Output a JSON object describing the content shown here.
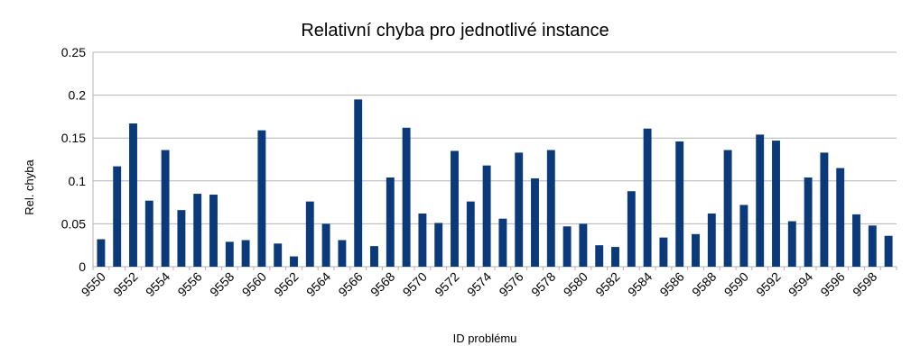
{
  "chart_data": {
    "type": "bar",
    "title": "Relativní chyba pro jednotlivé instance",
    "xlabel": "ID problému",
    "ylabel": "Rel. chyba",
    "ylim": [
      0,
      0.25
    ],
    "yticks": [
      "0",
      "0.05",
      "0.1",
      "0.15",
      "0.2",
      "0.25"
    ],
    "grid": true,
    "bar_color": "#0b3a7a",
    "categories": [
      "9550",
      "9551",
      "9552",
      "9553",
      "9554",
      "9555",
      "9556",
      "9557",
      "9558",
      "9559",
      "9560",
      "9561",
      "9562",
      "9563",
      "9564",
      "9565",
      "9566",
      "9567",
      "9568",
      "9569",
      "9570",
      "9571",
      "9572",
      "9573",
      "9574",
      "9575",
      "9576",
      "9577",
      "9578",
      "9579",
      "9580",
      "9581",
      "9582",
      "9583",
      "9584",
      "9585",
      "9586",
      "9587",
      "9588",
      "9589",
      "9590",
      "9591",
      "9592",
      "9593",
      "9594",
      "9595",
      "9596",
      "9597",
      "9598",
      "9599"
    ],
    "shown_tick_labels": [
      "9550",
      "9552",
      "9554",
      "9556",
      "9558",
      "9560",
      "9562",
      "9564",
      "9566",
      "9568",
      "9570",
      "9572",
      "9574",
      "9576",
      "9578",
      "9580",
      "9582",
      "9584",
      "9586",
      "9588",
      "9590",
      "9592",
      "9594",
      "9596",
      "9598"
    ],
    "values": [
      0.032,
      0.117,
      0.167,
      0.077,
      0.136,
      0.066,
      0.085,
      0.084,
      0.029,
      0.031,
      0.159,
      0.027,
      0.012,
      0.076,
      0.05,
      0.031,
      0.195,
      0.024,
      0.104,
      0.162,
      0.062,
      0.051,
      0.135,
      0.076,
      0.118,
      0.056,
      0.133,
      0.103,
      0.136,
      0.047,
      0.05,
      0.025,
      0.023,
      0.088,
      0.161,
      0.034,
      0.146,
      0.038,
      0.062,
      0.136,
      0.072,
      0.154,
      0.147,
      0.053,
      0.104,
      0.133,
      0.115,
      0.061,
      0.048,
      0.036
    ]
  }
}
